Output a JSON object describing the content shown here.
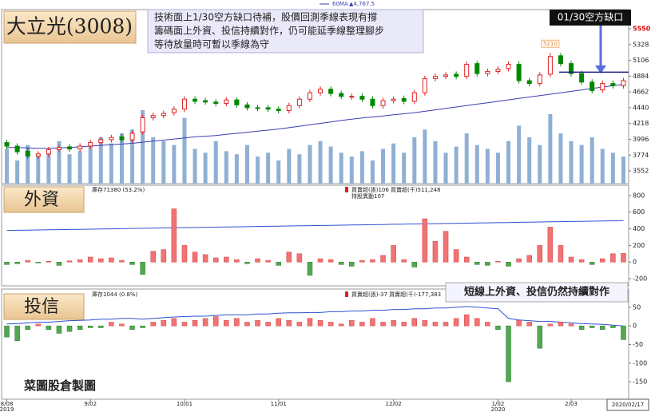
{
  "chart_data": [
    {
      "type": "candlestick",
      "title": "大立光(3008)",
      "annotation": [
        "技術面上1/30空方缺口待補，股價回測季線表現有撐",
        "籌碼面上外資、投信持續對作，仍可能延季線整理腳步",
        "等待放量時可暫以季線為守"
      ],
      "gap_label": "01/30空方缺口",
      "gap_level": 4940,
      "peak_label": "5210",
      "ma_label": "60MA",
      "ma_value_label": "▲4,767.5",
      "categories": [
        "8/08",
        null,
        null,
        null,
        null,
        null,
        null,
        null,
        "9/02",
        null,
        null,
        null,
        null,
        null,
        null,
        null,
        null,
        "10/01",
        null,
        null,
        null,
        null,
        null,
        null,
        null,
        null,
        "11/01",
        null,
        null,
        null,
        null,
        null,
        null,
        null,
        null,
        null,
        null,
        "12/02",
        null,
        null,
        null,
        null,
        null,
        null,
        null,
        null,
        null,
        "1/02",
        null,
        null,
        null,
        null,
        null,
        null,
        "2/03",
        null,
        null,
        null,
        null,
        null
      ],
      "years": [
        "2019",
        null,
        null,
        null,
        null,
        null,
        null,
        null,
        null,
        null,
        null,
        null,
        null,
        null,
        null,
        null,
        null,
        null,
        null,
        null,
        null,
        null,
        null,
        null,
        null,
        null,
        null,
        null,
        null,
        null,
        null,
        null,
        null,
        null,
        null,
        null,
        null,
        null,
        null,
        null,
        null,
        null,
        null,
        null,
        null,
        null,
        null,
        "2020",
        null,
        null,
        null,
        null,
        null,
        null,
        null,
        null,
        null,
        null,
        null,
        null
      ],
      "last_date": "2020/02/17",
      "open": [
        3950,
        3900,
        3830,
        3760,
        3790,
        3850,
        3890,
        3860,
        3900,
        3950,
        3990,
        4030,
        3990,
        4100,
        4300,
        4330,
        4370,
        4420,
        4560,
        4540,
        4520,
        4500,
        4550,
        4480,
        4440,
        4440,
        4420,
        4400,
        4470,
        4560,
        4650,
        4700,
        4640,
        4590,
        4600,
        4560,
        4470,
        4540,
        4570,
        4530,
        4650,
        4850,
        4880,
        4910,
        4880,
        5060,
        4920,
        4950,
        4990,
        5050,
        4820,
        4780,
        4910,
        5170,
        5060,
        4920,
        4800,
        4690,
        4780,
        4750
      ],
      "high": [
        3990,
        3940,
        3870,
        3830,
        3890,
        3920,
        3930,
        3940,
        3990,
        4030,
        4060,
        4070,
        4120,
        4340,
        4370,
        4400,
        4460,
        4600,
        4600,
        4580,
        4560,
        4590,
        4590,
        4520,
        4480,
        4480,
        4460,
        4510,
        4600,
        4690,
        4740,
        4740,
        4680,
        4640,
        4640,
        4600,
        4580,
        4600,
        4610,
        4690,
        4890,
        4920,
        4940,
        4950,
        5090,
        5100,
        4990,
        5020,
        5090,
        5090,
        4860,
        4940,
        5210,
        5210,
        5100,
        4960,
        4840,
        4820,
        4820,
        4860
      ],
      "low": [
        3860,
        3780,
        3720,
        3720,
        3750,
        3810,
        3820,
        3820,
        3860,
        3910,
        3950,
        3950,
        3950,
        4060,
        4260,
        4290,
        4330,
        4380,
        4490,
        4480,
        4460,
        4460,
        4440,
        4400,
        4390,
        4380,
        4360,
        4360,
        4430,
        4520,
        4610,
        4600,
        4560,
        4550,
        4520,
        4430,
        4430,
        4500,
        4490,
        4490,
        4610,
        4810,
        4840,
        4840,
        4840,
        4880,
        4880,
        4910,
        4950,
        4780,
        4740,
        4740,
        4870,
        5020,
        4880,
        4760,
        4640,
        4650,
        4710,
        4710
      ],
      "close": [
        3900,
        3820,
        3760,
        3790,
        3850,
        3880,
        3860,
        3900,
        3950,
        3990,
        4020,
        3990,
        4080,
        4300,
        4330,
        4360,
        4420,
        4560,
        4530,
        4520,
        4500,
        4550,
        4480,
        4440,
        4430,
        4420,
        4400,
        4470,
        4560,
        4650,
        4700,
        4640,
        4600,
        4600,
        4560,
        4470,
        4540,
        4560,
        4530,
        4650,
        4850,
        4880,
        4900,
        4880,
        5050,
        4920,
        4950,
        4980,
        5050,
        4820,
        4780,
        4900,
        5160,
        5060,
        4920,
        4800,
        4680,
        4780,
        4750,
        4820
      ],
      "ma": [
        3880,
        3880,
        3875,
        3870,
        3870,
        3875,
        3880,
        3890,
        3900,
        3910,
        3920,
        3930,
        3940,
        3955,
        3970,
        3985,
        4000,
        4015,
        4030,
        4040,
        4050,
        4065,
        4080,
        4095,
        4110,
        4125,
        4140,
        4160,
        4180,
        4200,
        4220,
        4240,
        4260,
        4280,
        4295,
        4310,
        4325,
        4340,
        4355,
        4370,
        4390,
        4410,
        4430,
        4450,
        4470,
        4490,
        4510,
        4530,
        4550,
        4570,
        4590,
        4610,
        4630,
        4650,
        4670,
        4690,
        4710,
        4730,
        4750,
        4767.5
      ],
      "volume": [
        45,
        30,
        50,
        35,
        40,
        55,
        38,
        42,
        48,
        60,
        52,
        65,
        70,
        95,
        60,
        55,
        50,
        85,
        45,
        40,
        55,
        42,
        38,
        50,
        35,
        40,
        30,
        45,
        38,
        50,
        55,
        48,
        40,
        35,
        42,
        30,
        45,
        52,
        40,
        60,
        70,
        55,
        40,
        48,
        65,
        50,
        45,
        40,
        55,
        75,
        60,
        50,
        90,
        65,
        55,
        50,
        60,
        45,
        40,
        35
      ],
      "up_color": "#e02020",
      "down_color": "#008800",
      "ma_color": "#3c3cb4",
      "volume_color": "#8fb0d4",
      "gap_color": "#1a1a80",
      "top_tick_color": "#e00000",
      "ylim": [
        3373,
        5819
      ],
      "yticks": [
        3552,
        3774,
        3996,
        4218,
        4440,
        4662,
        4884,
        5106,
        5328,
        5550
      ]
    },
    {
      "type": "bar",
      "title": "外資",
      "holding_label": "庫存71380 (53.2%)",
      "legend_label": "買賣超(張)106 買賣超(千)511,248",
      "change_label": "持股異動107",
      "values": [
        -30,
        -20,
        20,
        -10,
        10,
        -40,
        15,
        30,
        60,
        40,
        50,
        20,
        -30,
        -150,
        130,
        150,
        640,
        200,
        120,
        90,
        50,
        60,
        30,
        -20,
        40,
        20,
        -40,
        120,
        100,
        -160,
        40,
        30,
        -30,
        -50,
        20,
        30,
        80,
        200,
        30,
        -60,
        520,
        250,
        370,
        150,
        60,
        -30,
        -40,
        10,
        -50,
        40,
        80,
        200,
        420,
        200,
        60,
        30,
        -30,
        40,
        100,
        106
      ],
      "line_values": [
        380,
        382,
        384,
        386,
        388,
        390,
        392,
        394,
        396,
        398,
        400,
        402,
        404,
        406,
        408,
        410,
        412,
        414,
        416,
        418,
        420,
        422,
        424,
        426,
        428,
        430,
        432,
        434,
        436,
        438,
        440,
        442,
        444,
        446,
        448,
        450,
        452,
        454,
        456,
        458,
        460,
        462,
        464,
        466,
        468,
        470,
        472,
        474,
        476,
        478,
        480,
        482,
        484,
        486,
        488,
        490,
        492,
        494,
        496,
        498
      ],
      "pos_color": "#f27373",
      "neg_color": "#52a852",
      "line_color": "#3050d0",
      "ylim": [
        -286,
        924
      ],
      "yticks": [
        800,
        600,
        400,
        200,
        0,
        -200
      ]
    },
    {
      "type": "bar",
      "title": "投信",
      "holding_label": "庫存1044 (0.8%)",
      "legend_label": "買賣超(張)-37 買賣超(千)-177,383",
      "callout": "短線上外資、投信仍然持續對作",
      "watermark": "菜圖股倉製圖",
      "values": [
        -30,
        -40,
        -10,
        5,
        -10,
        -20,
        -15,
        -10,
        -5,
        -5,
        10,
        5,
        -10,
        -5,
        10,
        15,
        20,
        10,
        15,
        20,
        25,
        15,
        20,
        10,
        15,
        10,
        20,
        15,
        10,
        20,
        15,
        10,
        5,
        15,
        10,
        20,
        10,
        15,
        10,
        20,
        15,
        10,
        10,
        20,
        30,
        20,
        10,
        -10,
        -150,
        15,
        10,
        -60,
        5,
        10,
        5,
        -10,
        -5,
        -10,
        -5,
        -37
      ],
      "line_values": [
        5,
        6,
        8,
        10,
        10,
        12,
        14,
        15,
        16,
        18,
        18,
        20,
        20,
        18,
        20,
        22,
        24,
        25,
        26,
        26,
        28,
        30,
        30,
        30,
        32,
        32,
        34,
        35,
        35,
        36,
        36,
        38,
        38,
        40,
        40,
        42,
        42,
        44,
        44,
        46,
        46,
        48,
        48,
        50,
        52,
        50,
        48,
        46,
        20,
        16,
        14,
        12,
        12,
        10,
        8,
        6,
        5,
        4,
        2,
        0
      ],
      "pos_color": "#f27373",
      "neg_color": "#52a852",
      "line_color": "#3050d0",
      "ylim": [
        -197,
        99
      ],
      "yticks": [
        50,
        0,
        -50,
        -100,
        -150
      ]
    }
  ]
}
